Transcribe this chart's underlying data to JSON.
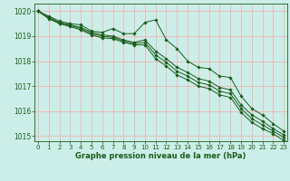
{
  "bg_color": "#cceee8",
  "grid_color": "#f5aaaa",
  "line_color": "#1a5c1a",
  "title": "Graphe pression niveau de la mer (hPa)",
  "ylim": [
    1014.8,
    1020.3
  ],
  "xlim": [
    -0.3,
    23.3
  ],
  "yticks": [
    1015,
    1016,
    1017,
    1018,
    1019,
    1020
  ],
  "xticks": [
    0,
    1,
    2,
    3,
    4,
    5,
    6,
    7,
    8,
    9,
    10,
    11,
    12,
    13,
    14,
    15,
    16,
    17,
    18,
    19,
    20,
    21,
    22,
    23
  ],
  "series": [
    [
      1020.0,
      1019.8,
      1019.6,
      1019.5,
      1019.45,
      1019.2,
      1019.15,
      1019.3,
      1019.1,
      1019.1,
      1019.55,
      1019.65,
      1018.85,
      1018.5,
      1018.0,
      1017.75,
      1017.7,
      1017.4,
      1017.35,
      1016.6,
      1016.1,
      1015.85,
      1015.5,
      1015.2
    ],
    [
      1020.0,
      1019.75,
      1019.55,
      1019.45,
      1019.35,
      1019.15,
      1019.05,
      1019.0,
      1018.85,
      1018.75,
      1018.85,
      1018.4,
      1018.1,
      1017.75,
      1017.55,
      1017.3,
      1017.2,
      1016.95,
      1016.85,
      1016.25,
      1015.85,
      1015.6,
      1015.3,
      1015.05
    ],
    [
      1020.0,
      1019.72,
      1019.52,
      1019.42,
      1019.3,
      1019.1,
      1019.0,
      1018.95,
      1018.8,
      1018.7,
      1018.75,
      1018.25,
      1017.95,
      1017.6,
      1017.4,
      1017.15,
      1017.05,
      1016.8,
      1016.7,
      1016.1,
      1015.7,
      1015.45,
      1015.2,
      1014.95
    ],
    [
      1020.0,
      1019.7,
      1019.5,
      1019.38,
      1019.25,
      1019.05,
      1018.93,
      1018.9,
      1018.75,
      1018.65,
      1018.65,
      1018.1,
      1017.8,
      1017.45,
      1017.25,
      1017.0,
      1016.9,
      1016.65,
      1016.55,
      1015.95,
      1015.55,
      1015.3,
      1015.1,
      1014.82
    ]
  ]
}
